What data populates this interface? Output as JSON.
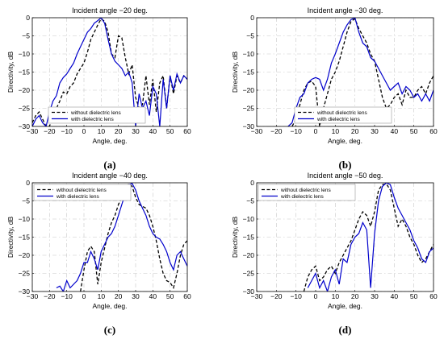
{
  "colors": {
    "series_1": "#000000",
    "series_2": "#0000cc"
  },
  "chart_data": [
    {
      "type": "line",
      "panel": "(a)",
      "title": "Incident angle −20 deg.",
      "xlabel": "Angle, deg.",
      "ylabel": "Directivity, dB",
      "xlim": [
        -30,
        60
      ],
      "ylim": [
        -30,
        0
      ],
      "xticks": [
        "−30",
        "−20",
        "−10",
        "0",
        "10",
        "20",
        "30",
        "40",
        "50",
        "60"
      ],
      "yticks": [
        "0",
        "−5",
        "−10",
        "−15",
        "−20",
        "−25",
        "−30"
      ],
      "grid": true,
      "legend_position": "bottom-right",
      "series": [
        {
          "name": "without dielectric lens",
          "style": "dashed",
          "x": [
            -30,
            -28,
            -26,
            -24,
            -22,
            -20,
            -18,
            -16,
            -14,
            -12,
            -10,
            -8,
            -6,
            -4,
            -2,
            0,
            2,
            4,
            6,
            8,
            10,
            12,
            14,
            16,
            18,
            20,
            22,
            24,
            26,
            28,
            30,
            32,
            34,
            36,
            38,
            40,
            42,
            44,
            46,
            48,
            50,
            52,
            54,
            56,
            58,
            60
          ],
          "y": [
            -29,
            -27,
            -26,
            -28,
            -30,
            -30,
            -27,
            -25,
            -23,
            -20.5,
            -21,
            -19,
            -18,
            -15.5,
            -14,
            -12.5,
            -9.5,
            -6,
            -4,
            -2,
            -0.3,
            -1,
            -4,
            -10,
            -11,
            -5,
            -5.5,
            -11,
            -15.5,
            -13,
            -22,
            -25,
            -24,
            -16,
            -24,
            -17,
            -26,
            -18,
            -16,
            -25,
            -16,
            -21,
            -16,
            -18,
            -16,
            -17
          ]
        },
        {
          "name": "with dielectric lens",
          "style": "solid",
          "x": [
            -30,
            -28,
            -26,
            -24,
            -22,
            -20,
            -18,
            -16,
            -14,
            -12,
            -10,
            -8,
            -6,
            -4,
            -2,
            0,
            2,
            4,
            6,
            8,
            10,
            12,
            14,
            16,
            18,
            20,
            22,
            24,
            26,
            28,
            30,
            32,
            34,
            36,
            38,
            40,
            42,
            44,
            46,
            48,
            50,
            52,
            54,
            56,
            58,
            60
          ],
          "y": [
            -30,
            -28,
            -27,
            -29,
            -30,
            -26,
            -23,
            -21.5,
            -18,
            -16.5,
            -15.5,
            -14,
            -12.5,
            -10,
            -8,
            -6,
            -4,
            -3,
            -1.5,
            -0.8,
            0,
            -1.5,
            -6,
            -10,
            -12,
            -13,
            -14,
            -16,
            -15,
            -18,
            -30,
            -21,
            -25,
            -23,
            -27,
            -19,
            -21,
            -30,
            -17,
            -25,
            -16,
            -20,
            -15.5,
            -18,
            -16,
            -17
          ]
        }
      ]
    },
    {
      "type": "line",
      "panel": "(b)",
      "title": "Incident angle −30 deg.",
      "xlabel": "Angle, deg.",
      "ylabel": "Directivity, dB",
      "xlim": [
        -30,
        60
      ],
      "ylim": [
        -30,
        0
      ],
      "xticks": [
        "−30",
        "−20",
        "−10",
        "0",
        "10",
        "20",
        "30",
        "40",
        "50",
        "60"
      ],
      "yticks": [
        "0",
        "−5",
        "−10",
        "−15",
        "−20",
        "−25",
        "−30"
      ],
      "grid": true,
      "legend_position": "bottom-right",
      "series": [
        {
          "name": "without dielectric lens",
          "style": "dashed",
          "x": [
            -12,
            -10,
            -8,
            -6,
            -4,
            -2,
            0,
            2,
            4,
            6,
            8,
            10,
            12,
            14,
            16,
            18,
            20,
            22,
            24,
            26,
            28,
            30,
            32,
            34,
            36,
            38,
            40,
            42,
            44,
            46,
            48,
            50,
            52,
            54,
            56,
            58,
            60
          ],
          "y": [
            -30,
            -28,
            -24,
            -20,
            -18,
            -17.5,
            -19,
            -30,
            -25,
            -21,
            -17,
            -15,
            -12,
            -8,
            -4,
            -1,
            -0.3,
            -3,
            -5,
            -7,
            -10,
            -12,
            -17,
            -22,
            -25,
            -24,
            -22,
            -21,
            -24,
            -20,
            -22,
            -22,
            -20,
            -19,
            -21,
            -18,
            -16
          ]
        },
        {
          "name": "with dielectric lens",
          "style": "solid",
          "x": [
            -14,
            -12,
            -10,
            -8,
            -6,
            -4,
            -2,
            0,
            2,
            4,
            6,
            8,
            10,
            12,
            14,
            16,
            18,
            20,
            22,
            24,
            26,
            28,
            30,
            32,
            34,
            36,
            38,
            40,
            42,
            44,
            46,
            48,
            50,
            52,
            54,
            56,
            58,
            60
          ],
          "y": [
            -30,
            -29,
            -25,
            -22,
            -21,
            -18,
            -17,
            -16.5,
            -17,
            -20,
            -17,
            -12.5,
            -10,
            -7,
            -4,
            -2,
            -0.5,
            0,
            -4,
            -7,
            -8,
            -11,
            -12,
            -14,
            -16,
            -18,
            -20,
            -19,
            -18,
            -21,
            -19,
            -20,
            -22,
            -21,
            -23,
            -21,
            -23,
            -20
          ]
        }
      ]
    },
    {
      "type": "line",
      "panel": "(c)",
      "title": "Incident angle −40 deg.",
      "xlabel": "Angle, deg.",
      "ylabel": "Directivity, dB",
      "xlim": [
        -30,
        60
      ],
      "ylim": [
        -30,
        0
      ],
      "xticks": [
        "−30",
        "−20",
        "−10",
        "0",
        "10",
        "20",
        "30",
        "40",
        "50",
        "60"
      ],
      "yticks": [
        "0",
        "−5",
        "−10",
        "−15",
        "−20",
        "−25",
        "−30"
      ],
      "grid": true,
      "legend_position": "top-left",
      "series": [
        {
          "name": "without dielectric lens",
          "style": "dashed",
          "x": [
            -2,
            0,
            2,
            4,
            6,
            8,
            10,
            12,
            14,
            16,
            18,
            20,
            22,
            24,
            26,
            28,
            30,
            32,
            34,
            36,
            38,
            40,
            42,
            44,
            46,
            48,
            50,
            52,
            54,
            56,
            58,
            60
          ],
          "y": [
            -30,
            -24,
            -19,
            -17.5,
            -19,
            -28,
            -22,
            -18,
            -14,
            -11,
            -9,
            -6,
            -4,
            -2,
            -0.3,
            -1,
            -4,
            -6,
            -6.5,
            -7,
            -9,
            -12,
            -16,
            -21,
            -25,
            -27,
            -27.5,
            -29,
            -25,
            -20,
            -17,
            -16
          ]
        },
        {
          "name": "with dielectric lens",
          "style": "solid",
          "x": [
            -16,
            -14,
            -12,
            -10,
            -8,
            -6,
            -4,
            -2,
            0,
            2,
            4,
            6,
            8,
            10,
            12,
            14,
            16,
            18,
            20,
            22,
            24,
            26,
            28,
            30,
            32,
            34,
            36,
            38,
            40,
            42,
            44,
            46,
            48,
            50,
            52,
            54,
            56,
            58,
            60
          ],
          "y": [
            -29,
            -28.5,
            -30,
            -27,
            -29,
            -28,
            -27,
            -25,
            -22,
            -22,
            -19,
            -21,
            -24,
            -19,
            -17,
            -15,
            -14,
            -12,
            -9,
            -6,
            -3,
            -0.5,
            -0.2,
            -2,
            -5,
            -7,
            -9,
            -12,
            -14,
            -15,
            -15.5,
            -17,
            -19,
            -22,
            -24,
            -20,
            -19,
            -21,
            -23
          ]
        }
      ]
    },
    {
      "type": "line",
      "panel": "(d)",
      "title": "Incident angle −50 deg.",
      "xlabel": "Angle, deg.",
      "ylabel": "Directivity, dB",
      "xlim": [
        -30,
        60
      ],
      "ylim": [
        -30,
        0
      ],
      "xticks": [
        "−30",
        "−20",
        "−10",
        "0",
        "10",
        "20",
        "30",
        "40",
        "50",
        "60"
      ],
      "yticks": [
        "0",
        "−5",
        "−10",
        "−15",
        "−20",
        "−25",
        "−30"
      ],
      "grid": true,
      "legend_position": "top-left",
      "series": [
        {
          "name": "without dielectric lens",
          "style": "dashed",
          "x": [
            -6,
            -4,
            -2,
            0,
            2,
            4,
            6,
            8,
            10,
            12,
            14,
            16,
            18,
            20,
            22,
            24,
            26,
            28,
            30,
            32,
            34,
            36,
            38,
            40,
            42,
            44,
            46,
            48,
            50,
            52,
            54,
            56,
            58,
            60
          ],
          "y": [
            -30,
            -26,
            -24,
            -23,
            -27,
            -26,
            -24,
            -23,
            -25,
            -22,
            -20,
            -18,
            -16,
            -13,
            -10,
            -8,
            -9,
            -12,
            -8,
            -2,
            -0.5,
            -0.3,
            -2,
            -7,
            -12,
            -10,
            -12,
            -15,
            -17,
            -20,
            -22,
            -21,
            -19,
            -17
          ]
        },
        {
          "name": "with dielectric lens",
          "style": "solid",
          "x": [
            -4,
            -2,
            0,
            2,
            4,
            6,
            8,
            10,
            12,
            14,
            16,
            18,
            20,
            22,
            24,
            26,
            28,
            30,
            32,
            34,
            36,
            38,
            40,
            42,
            44,
            46,
            48,
            50,
            52,
            54,
            56,
            58,
            60
          ],
          "y": [
            -29,
            -27,
            -25,
            -29,
            -27,
            -30,
            -26,
            -24,
            -28,
            -21,
            -22,
            -17,
            -15,
            -14,
            -11,
            -13,
            -29,
            -14,
            -5,
            -1,
            0,
            -0.5,
            -4,
            -7,
            -9,
            -11,
            -13,
            -16,
            -18,
            -21,
            -22,
            -19,
            -18
          ]
        }
      ]
    }
  ]
}
